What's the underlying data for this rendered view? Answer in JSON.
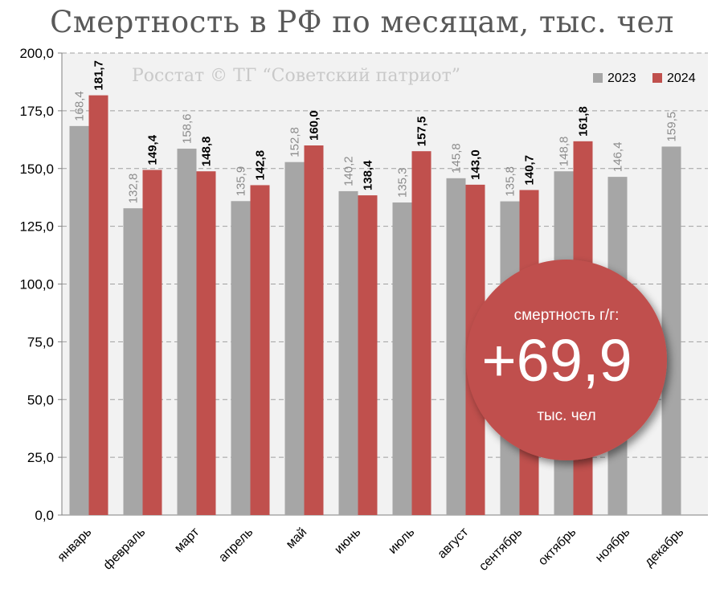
{
  "title": "Смертность в РФ по месяцам, тыс. чел",
  "watermark": "Росстат © ТГ “Советский патриот”",
  "callout": {
    "label": "смертность г/г:",
    "value": "+69,9",
    "unit": "тыс. чел"
  },
  "colors": {
    "series_2023": "#a6a6a6",
    "series_2024": "#c0504d",
    "plot_bg": "#f2f2f2",
    "callout_fill": "#c0504d"
  },
  "chart_data": {
    "type": "bar",
    "categories": [
      "январь",
      "февраль",
      "март",
      "апрель",
      "май",
      "июнь",
      "июль",
      "август",
      "сентябрь",
      "октябрь",
      "ноябрь",
      "декабрь"
    ],
    "series": [
      {
        "name": "2023",
        "values": [
          168.4,
          132.8,
          158.6,
          135.9,
          152.8,
          140.2,
          135.3,
          145.8,
          135.8,
          148.8,
          146.4,
          159.5
        ],
        "labels": [
          "168,4",
          "132,8",
          "158,6",
          "135,9",
          "152,8",
          "140,2",
          "135,3",
          "145,8",
          "135,8",
          "148,8",
          "146,4",
          "159,5"
        ]
      },
      {
        "name": "2024",
        "values": [
          181.7,
          149.4,
          148.8,
          142.8,
          160.0,
          138.4,
          157.5,
          143.0,
          140.7,
          161.8,
          null,
          null
        ],
        "labels": [
          "181,7",
          "149,4",
          "148,8",
          "142,8",
          "160,0",
          "138,4",
          "157,5",
          "143,0",
          "140,7",
          "161,8",
          null,
          null
        ]
      }
    ],
    "ylim": [
      0,
      200
    ],
    "yticks": [
      "0,0",
      "25,0",
      "50,0",
      "75,0",
      "100,0",
      "125,0",
      "150,0",
      "175,0",
      "200,0"
    ],
    "grid": true,
    "legend": "top-right"
  }
}
